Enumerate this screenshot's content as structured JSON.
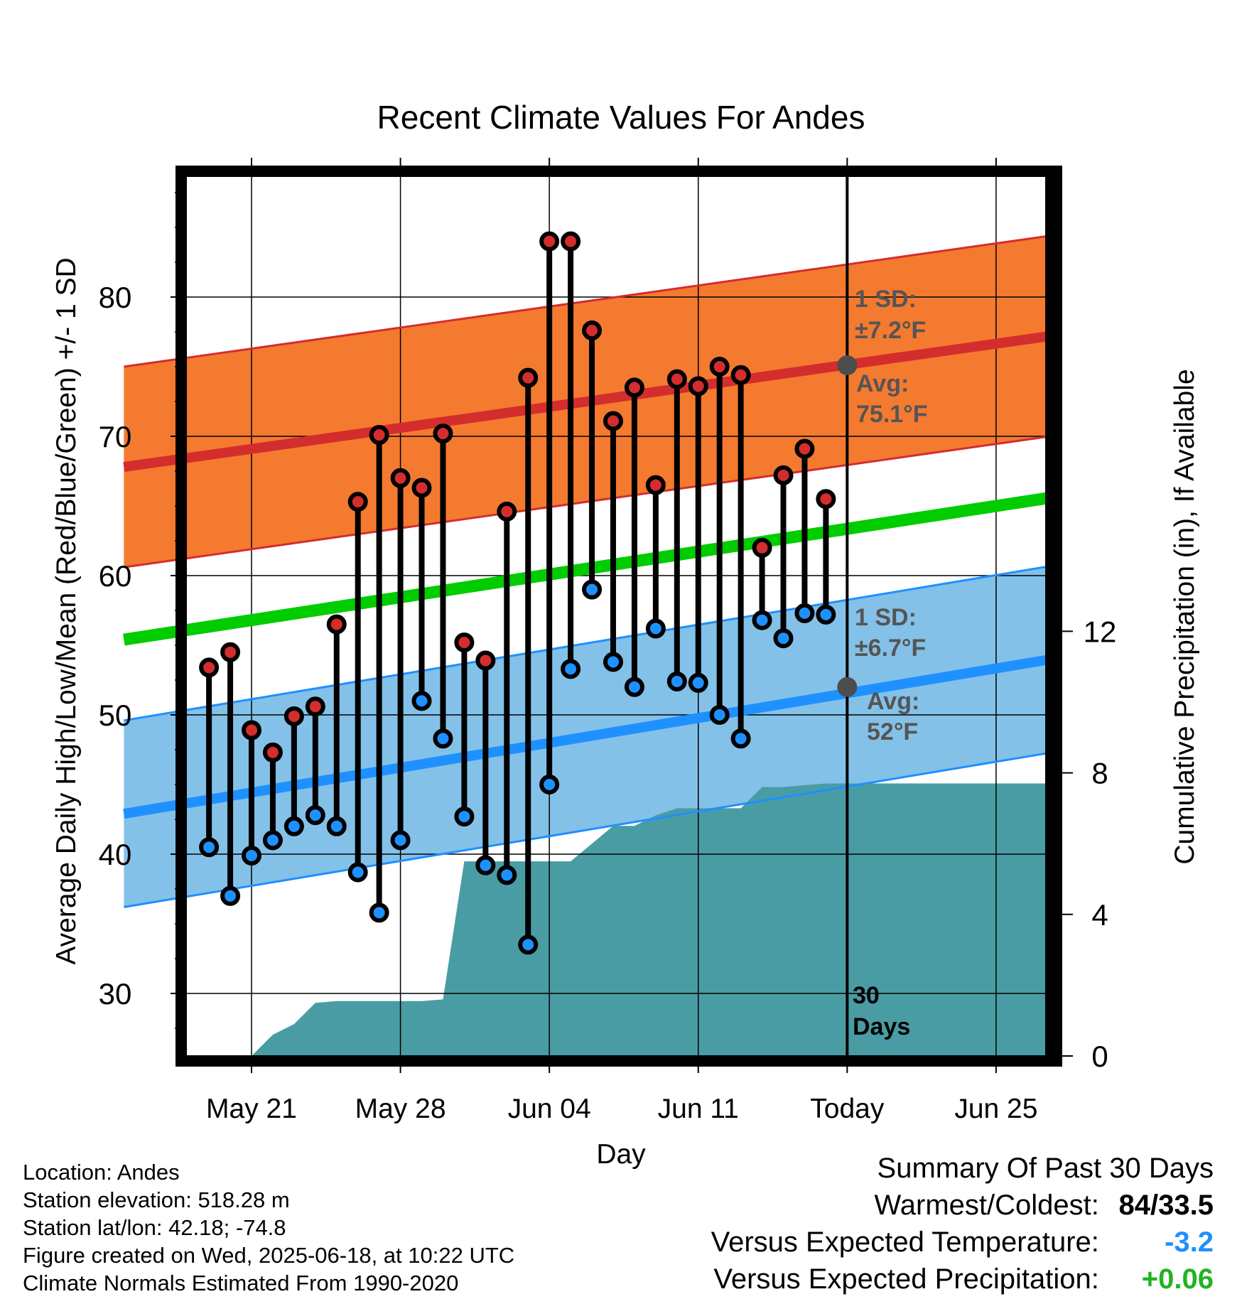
{
  "chart_data": {
    "type": "line",
    "title": "Recent Climate Values For Andes",
    "xlabel": "Day",
    "ylabel": "Average Daily High/Low/Mean (Red/Blue/Green) +/- 1 SD",
    "y2label": "Cumulative Precipitation (in), If Available",
    "x_range_days": [
      -34,
      10
    ],
    "ylim": [
      25.5,
      88.5
    ],
    "y2lim": [
      0,
      24.8
    ],
    "yticks": [
      30,
      40,
      50,
      60,
      70,
      80
    ],
    "y2ticks": [
      0,
      4,
      8,
      12
    ],
    "xticks": [
      {
        "day": -28,
        "label": "May 21"
      },
      {
        "day": -21,
        "label": "May 28"
      },
      {
        "day": -14,
        "label": "Jun 04"
      },
      {
        "day": -7,
        "label": "Jun 11"
      },
      {
        "day": 0,
        "label": "Today"
      },
      {
        "day": 7,
        "label": "Jun 25"
      }
    ],
    "grid": true,
    "normals": {
      "days": [
        -34,
        10
      ],
      "high_mean": [
        67.8,
        77.3
      ],
      "high_sd": 7.2,
      "low_mean": [
        42.9,
        54.1
      ],
      "low_sd": 6.7,
      "mean": [
        55.4,
        65.7
      ]
    },
    "observations": {
      "days": [
        -30,
        -29,
        -28,
        -27,
        -26,
        -25,
        -24,
        -23,
        -22,
        -21,
        -20,
        -19,
        -18,
        -17,
        -16,
        -15,
        -14,
        -13,
        -12,
        -11,
        -10,
        -9,
        -8,
        -7,
        -6,
        -5,
        -4,
        -3,
        -2,
        -1
      ],
      "high": [
        53.4,
        54.5,
        48.9,
        47.3,
        49.9,
        50.6,
        56.5,
        65.3,
        70.1,
        67.0,
        66.3,
        70.2,
        55.2,
        53.9,
        64.6,
        74.2,
        84.0,
        84.0,
        77.6,
        71.1,
        73.5,
        66.5,
        74.1,
        73.6,
        75.0,
        74.4,
        62.0,
        67.2,
        69.1,
        65.5
      ],
      "low": [
        40.5,
        37.0,
        39.9,
        41.0,
        42.0,
        42.8,
        42.0,
        38.7,
        35.8,
        41.0,
        51.0,
        48.3,
        42.7,
        39.2,
        38.5,
        33.5,
        45.0,
        53.3,
        59.0,
        53.8,
        52.0,
        56.2,
        52.4,
        52.3,
        50.0,
        48.3,
        56.8,
        55.5,
        57.3,
        57.2
      ]
    },
    "precip_cumulative": {
      "days": [
        -28,
        -27,
        -26,
        -25,
        -24,
        -23,
        -22,
        -21,
        -20,
        -19,
        -18,
        -17,
        -16,
        -15,
        -14,
        -13,
        -12,
        -11,
        -10,
        -9,
        -8,
        -7,
        -6,
        -5,
        -4,
        -3,
        -2,
        -1,
        0,
        10
      ],
      "values": [
        0,
        0.6,
        0.9,
        1.5,
        1.55,
        1.55,
        1.55,
        1.55,
        1.55,
        1.6,
        5.5,
        5.5,
        5.5,
        5.5,
        5.5,
        5.5,
        6.0,
        6.5,
        6.5,
        6.8,
        7.0,
        7.0,
        7.0,
        7.0,
        7.6,
        7.6,
        7.65,
        7.7,
        7.7,
        7.7
      ]
    },
    "annotations": {
      "high_sd_label": "1 SD:",
      "high_sd_value": "±7.2°F",
      "high_avg_label": "Avg:",
      "high_avg_value": "75.1°F",
      "today_high_avg": 75.1,
      "low_sd_label": "1 SD:",
      "low_sd_value": "±6.7°F",
      "low_avg_label": "Avg:",
      "low_avg_value": "52°F",
      "today_low_avg": 52.0,
      "days_line1": "30",
      "days_line2": "Days"
    },
    "colors": {
      "high_band": "#f47a30",
      "high_line": "#d42d2d",
      "low_band": "#84c1e8",
      "low_line": "#1e90ff",
      "mean_line": "#00cc00",
      "precip": "#4a9ca4",
      "high_dot": "#d42d2d",
      "low_dot": "#1e90ff",
      "annotation": "#555555"
    }
  },
  "footer": {
    "location": "Location: Andes",
    "elevation": "Station elevation: 518.28 m",
    "latlon": "Station lat/lon: 42.18; -74.8",
    "created": "Figure created on Wed, 2025-06-18, at 10:22 UTC",
    "normals": "Climate Normals Estimated From 1990-2020"
  },
  "summary": {
    "title": "Summary Of Past 30 Days",
    "warmest_label": "Warmest/Coldest:",
    "warmest_value": "84/33.5",
    "temp_label": "Versus Expected Temperature:",
    "temp_value": "-3.2",
    "temp_color": "#1e90ff",
    "precip_label": "Versus Expected Precipitation:",
    "precip_value": "+0.06",
    "precip_color": "#22b322"
  }
}
